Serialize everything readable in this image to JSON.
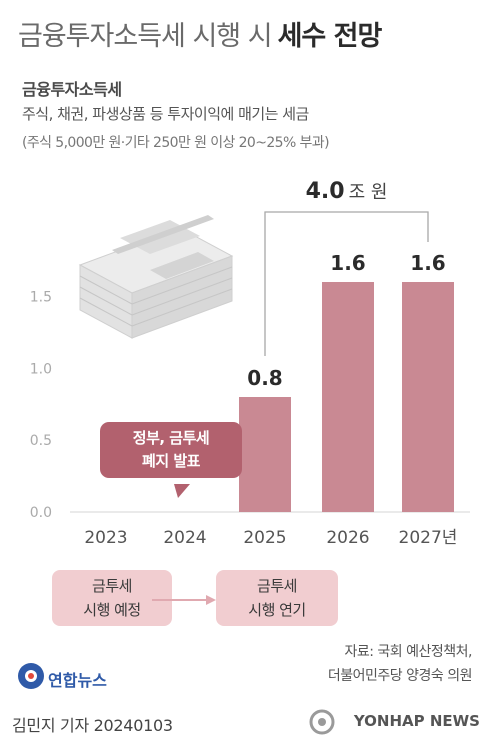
{
  "header": {
    "title_plain": "금융투자소득세 시행 시",
    "title_strong": "세수 전망",
    "subheading": "금융투자소득세",
    "description": "주식, 채권, 파생상품 등 투자이익에 매기는 세금",
    "note": "(주식 5,000만 원·기타 250만 원 이상 20~25% 부과)"
  },
  "chart_data": {
    "type": "bar",
    "categories": [
      "2023",
      "2024",
      "2025",
      "2026",
      "2027년"
    ],
    "values": [
      null,
      null,
      0.8,
      1.6,
      1.6
    ],
    "value_labels": [
      "",
      "",
      "0.8",
      "1.6",
      "1.6"
    ],
    "unit": "조 원",
    "ylim": [
      0,
      1.6
    ],
    "yticks": [
      0.0,
      0.5,
      1.0,
      1.5
    ],
    "ytick_labels": [
      "0.0",
      "0.5",
      "1.0",
      "1.5"
    ],
    "grid": false,
    "bar_color": "#c98993",
    "total_bracket": {
      "value": "4.0",
      "unit": "조 원",
      "from": "2025",
      "to": "2027년"
    },
    "annotation": {
      "text_line1": "정부, 금투세",
      "text_line2": "폐지 발표",
      "category": "2024"
    }
  },
  "timeline": {
    "from_line1": "금투세",
    "from_line2": "시행 예정",
    "to_line1": "금투세",
    "to_line2": "시행 연기"
  },
  "footer": {
    "source_line1": "자료: 국회 예산정책처,",
    "source_line2": "더불어민주당 양경숙 의원",
    "logo": "연합뉴스",
    "byline": "김민지 기자  20240103",
    "watermark": "YONHAP NEWS"
  },
  "colors": {
    "bar": "#c98993",
    "callout": "#b2616e",
    "pill": "#f1cdd0",
    "axis_text": "#aaaaaa",
    "logo_blue": "#2f5aa8"
  }
}
